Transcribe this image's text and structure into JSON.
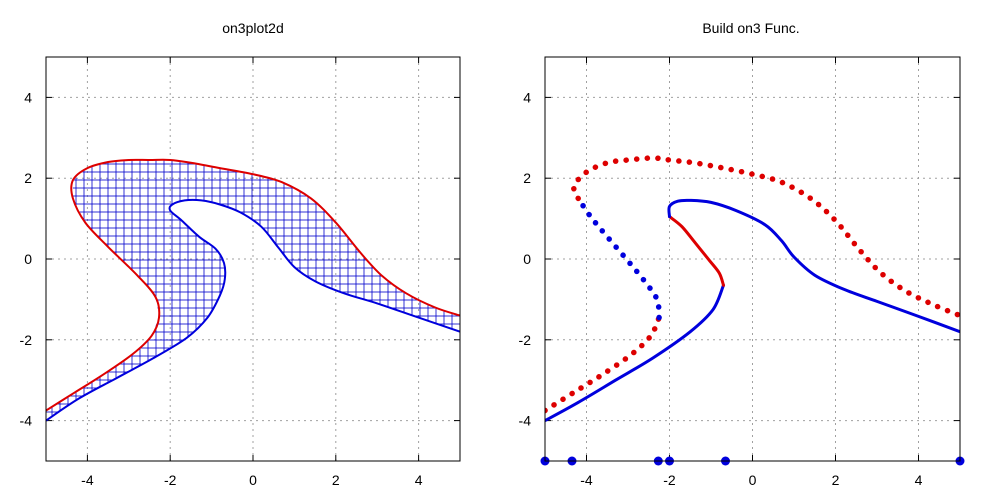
{
  "chart_data": [
    {
      "type": "line",
      "title": "on3plot2d",
      "xlabel": "",
      "ylabel": "",
      "xlim": [
        -5,
        5
      ],
      "ylim": [
        -5,
        5
      ],
      "grid": true,
      "x_ticks": [
        "-4",
        "-2",
        "0",
        "2",
        "4"
      ],
      "y_ticks": [
        "4",
        "2",
        "0",
        "-2",
        "-4"
      ],
      "series": [
        {
          "color": "#0000dd",
          "fill_pattern": "crosshatch-plus",
          "points": [
            [
              -5.0,
              -4.0
            ],
            [
              -4.2,
              -3.45
            ],
            [
              -3.3,
              -2.95
            ],
            [
              -2.4,
              -2.45
            ],
            [
              -1.6,
              -1.95
            ],
            [
              -1.1,
              -1.45
            ],
            [
              -0.8,
              -0.9
            ],
            [
              -0.68,
              -0.5
            ],
            [
              -0.7,
              -0.1
            ],
            [
              -0.9,
              0.25
            ],
            [
              -1.3,
              0.55
            ],
            [
              -1.72,
              0.95
            ],
            [
              -2.0,
              1.2
            ],
            [
              -1.95,
              1.35
            ],
            [
              -1.65,
              1.45
            ],
            [
              -1.25,
              1.45
            ],
            [
              -0.8,
              1.35
            ],
            [
              -0.3,
              1.15
            ],
            [
              0.2,
              0.8
            ],
            [
              0.6,
              0.3
            ],
            [
              1.0,
              -0.2
            ],
            [
              1.5,
              -0.55
            ],
            [
              2.2,
              -0.85
            ],
            [
              3.0,
              -1.1
            ],
            [
              4.0,
              -1.45
            ],
            [
              5.0,
              -1.8
            ]
          ]
        },
        {
          "color": "#dd0000",
          "points": [
            [
              -5.0,
              -3.75
            ],
            [
              -4.3,
              -3.3
            ],
            [
              -3.6,
              -2.85
            ],
            [
              -2.9,
              -2.35
            ],
            [
              -2.45,
              -1.9
            ],
            [
              -2.27,
              -1.45
            ],
            [
              -2.35,
              -0.95
            ],
            [
              -2.8,
              -0.4
            ],
            [
              -3.5,
              0.3
            ],
            [
              -4.05,
              0.9
            ],
            [
              -4.35,
              1.5
            ],
            [
              -4.35,
              1.95
            ],
            [
              -4.0,
              2.25
            ],
            [
              -3.5,
              2.4
            ],
            [
              -3.0,
              2.45
            ],
            [
              -2.5,
              2.45
            ],
            [
              -2.0,
              2.45
            ],
            [
              -1.5,
              2.38
            ],
            [
              -0.8,
              2.25
            ],
            [
              0.0,
              2.1
            ],
            [
              0.7,
              1.9
            ],
            [
              1.4,
              1.5
            ],
            [
              2.0,
              0.9
            ],
            [
              2.6,
              0.15
            ],
            [
              3.1,
              -0.4
            ],
            [
              3.7,
              -0.85
            ],
            [
              4.4,
              -1.2
            ],
            [
              5.0,
              -1.4
            ]
          ]
        }
      ]
    },
    {
      "type": "scatter",
      "title": "Build on3 Func.",
      "xlabel": "",
      "ylabel": "",
      "xlim": [
        -5,
        5
      ],
      "ylim": [
        -5,
        5
      ],
      "grid": true,
      "x_ticks": [
        "-4",
        "-2",
        "0",
        "2",
        "4"
      ],
      "y_ticks": [
        "4",
        "2",
        "0",
        "-2",
        "-4"
      ],
      "series": [
        {
          "color": "#0000dd",
          "style": "solid",
          "points": [
            [
              -5.0,
              -4.0
            ],
            [
              -4.2,
              -3.55
            ],
            [
              -3.3,
              -3.0
            ],
            [
              -2.4,
              -2.45
            ],
            [
              -1.5,
              -1.8
            ],
            [
              -0.95,
              -1.25
            ],
            [
              -0.7,
              -0.65
            ]
          ]
        },
        {
          "color": "#dd0000",
          "style": "solid",
          "points": [
            [
              -0.7,
              -0.65
            ],
            [
              -0.8,
              -0.35
            ],
            [
              -1.05,
              -0.02
            ],
            [
              -1.38,
              0.4
            ],
            [
              -1.7,
              0.8
            ],
            [
              -2.0,
              1.05
            ]
          ]
        },
        {
          "color": "#0000dd",
          "style": "solid",
          "points": [
            [
              -2.0,
              1.05
            ],
            [
              -2.0,
              1.3
            ],
            [
              -1.8,
              1.43
            ],
            [
              -1.5,
              1.45
            ],
            [
              -1.0,
              1.4
            ],
            [
              -0.4,
              1.2
            ],
            [
              0.3,
              0.85
            ],
            [
              0.7,
              0.45
            ],
            [
              1.0,
              0.05
            ],
            [
              1.5,
              -0.4
            ],
            [
              2.2,
              -0.75
            ],
            [
              3.0,
              -1.05
            ],
            [
              4.0,
              -1.42
            ],
            [
              5.0,
              -1.8
            ]
          ]
        },
        {
          "color": "#dd0000",
          "style": "dotted",
          "points": [
            [
              -5.0,
              -3.75
            ],
            [
              -4.3,
              -3.3
            ],
            [
              -3.6,
              -2.85
            ],
            [
              -2.9,
              -2.35
            ],
            [
              -2.45,
              -1.9
            ],
            [
              -2.25,
              -1.45
            ]
          ]
        },
        {
          "color": "#0000dd",
          "style": "dotted",
          "points": [
            [
              -2.25,
              -1.45
            ],
            [
              -2.3,
              -1.0
            ],
            [
              -2.6,
              -0.55
            ],
            [
              -3.0,
              -0.05
            ],
            [
              -3.5,
              0.55
            ],
            [
              -3.9,
              1.05
            ],
            [
              -4.2,
              1.5
            ]
          ]
        },
        {
          "color": "#dd0000",
          "style": "dotted",
          "points": [
            [
              -4.2,
              1.5
            ],
            [
              -4.3,
              1.8
            ],
            [
              -4.0,
              2.15
            ],
            [
              -3.5,
              2.38
            ],
            [
              -3.0,
              2.45
            ],
            [
              -2.4,
              2.5
            ],
            [
              -2.0,
              2.45
            ],
            [
              -1.4,
              2.38
            ],
            [
              -0.7,
              2.25
            ],
            [
              0.0,
              2.1
            ],
            [
              0.7,
              1.9
            ],
            [
              1.4,
              1.5
            ],
            [
              2.0,
              0.95
            ],
            [
              2.6,
              0.2
            ],
            [
              3.1,
              -0.35
            ],
            [
              3.7,
              -0.8
            ],
            [
              4.4,
              -1.15
            ],
            [
              5.0,
              -1.4
            ]
          ]
        },
        {
          "color": "#0000dd",
          "style": "markers",
          "points": [
            [
              -5.0,
              -5.0
            ],
            [
              -4.35,
              -5.0
            ],
            [
              -2.27,
              -5.0
            ],
            [
              -2.0,
              -5.0
            ],
            [
              -0.65,
              -5.0
            ],
            [
              5.0,
              -5.0
            ]
          ]
        }
      ]
    }
  ]
}
